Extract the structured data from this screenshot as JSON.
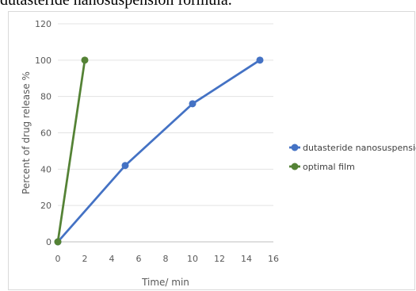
{
  "caption": "dutasteride nanosuspension formula.",
  "chart_data": {
    "type": "line",
    "title": "",
    "xlabel": "Time/ min",
    "ylabel": "Percent of drug release %",
    "xlim": [
      0,
      16
    ],
    "ylim": [
      0,
      120
    ],
    "x_ticks": [
      0,
      2,
      4,
      6,
      8,
      10,
      12,
      14,
      16
    ],
    "y_ticks": [
      0,
      20,
      40,
      60,
      80,
      100,
      120
    ],
    "grid": "horizontal",
    "legend_position": "right",
    "series": [
      {
        "name": "dutasteride nanosuspension",
        "color": "#4472c4",
        "x": [
          0,
          5,
          10,
          15
        ],
        "y": [
          0,
          42,
          76,
          100
        ]
      },
      {
        "name": "optimal film",
        "color": "#548235",
        "x": [
          0,
          2
        ],
        "y": [
          0,
          100
        ]
      }
    ]
  }
}
